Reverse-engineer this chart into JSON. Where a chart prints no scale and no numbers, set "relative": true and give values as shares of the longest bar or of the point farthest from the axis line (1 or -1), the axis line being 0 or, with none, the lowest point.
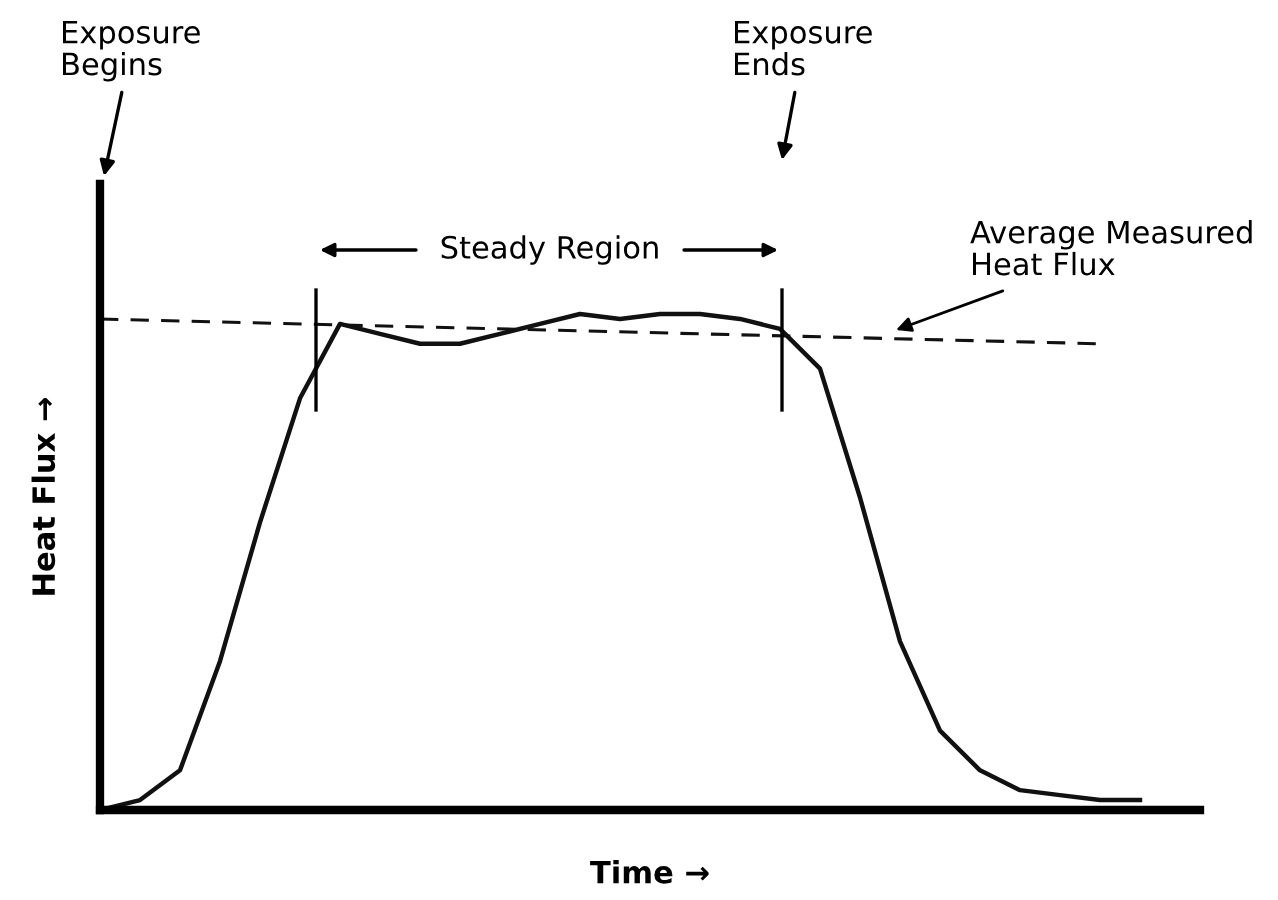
{
  "chart_data": {
    "type": "line",
    "relative": true,
    "xlabel": "Time →",
    "ylabel": "Heat Flux →",
    "categories": [
      null,
      null,
      null,
      null,
      null,
      null,
      null,
      null,
      null,
      null,
      null,
      null,
      null,
      null,
      null,
      null,
      null,
      null,
      null,
      null,
      null,
      null,
      null,
      null,
      null,
      null,
      null
    ],
    "series": [
      {
        "color": "#111111",
        "line_style": "solid",
        "values": [
          0,
          0.02,
          0.08,
          0.3,
          0.58,
          0.83,
          0.98,
          0.96,
          0.94,
          0.94,
          0.96,
          0.98,
          1.0,
          0.99,
          1.0,
          1.0,
          0.99,
          0.97,
          0.89,
          0.63,
          0.34,
          0.16,
          0.08,
          0.04,
          0.03,
          0.02,
          0.02
        ]
      },
      {
        "color": "#111111",
        "line_style": "dashed",
        "values": [
          0.99,
          null,
          null,
          null,
          null,
          null,
          null,
          null,
          null,
          null,
          null,
          null,
          null,
          null,
          null,
          null,
          null,
          null,
          null,
          null,
          null,
          null,
          null,
          null,
          null,
          0.94,
          null
        ]
      }
    ],
    "annotations": [
      "Exposure\nBegins",
      "Exposure\nEnds",
      "Steady Region",
      "Average Measured\nHeat Flux"
    ],
    "legend": false,
    "marker": "none"
  }
}
